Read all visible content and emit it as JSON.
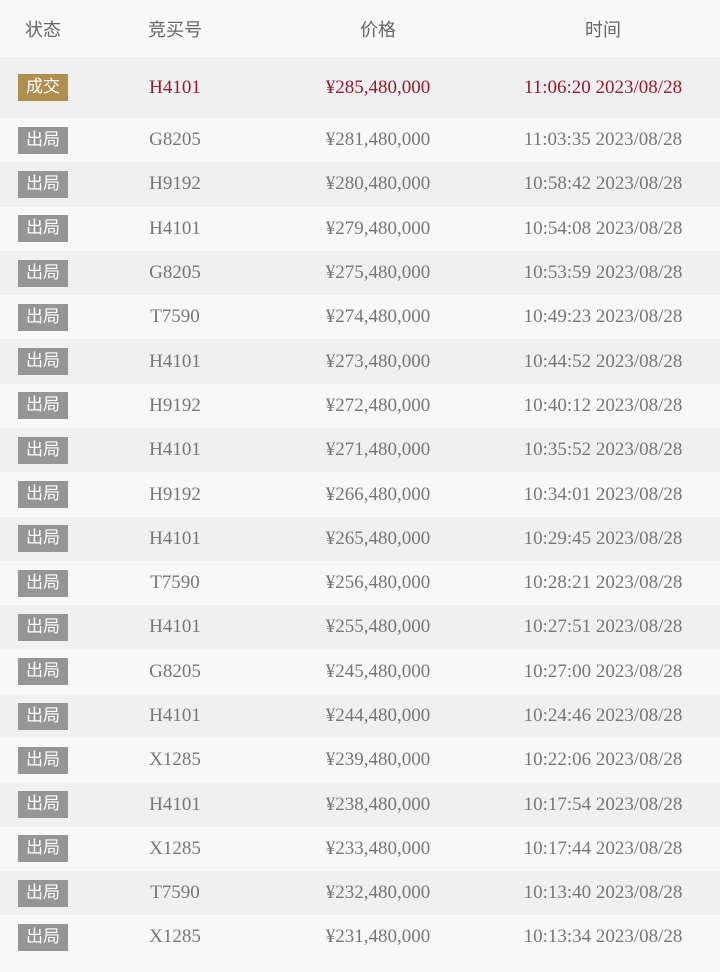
{
  "header": {
    "status": "状态",
    "bid_no": "竞买号",
    "price": "价格",
    "time": "时间"
  },
  "colors": {
    "deal_badge": "#b08f4e",
    "out_badge": "#959595",
    "highlight_text": "#9a1a2c"
  },
  "rows": [
    {
      "status": "成交",
      "bid_no": "H4101",
      "price": "¥285,480,000",
      "time": "11:06:20 2023/08/28"
    },
    {
      "status": "出局",
      "bid_no": "G8205",
      "price": "¥281,480,000",
      "time": "11:03:35 2023/08/28"
    },
    {
      "status": "出局",
      "bid_no": "H9192",
      "price": "¥280,480,000",
      "time": "10:58:42 2023/08/28"
    },
    {
      "status": "出局",
      "bid_no": "H4101",
      "price": "¥279,480,000",
      "time": "10:54:08 2023/08/28"
    },
    {
      "status": "出局",
      "bid_no": "G8205",
      "price": "¥275,480,000",
      "time": "10:53:59 2023/08/28"
    },
    {
      "status": "出局",
      "bid_no": "T7590",
      "price": "¥274,480,000",
      "time": "10:49:23 2023/08/28"
    },
    {
      "status": "出局",
      "bid_no": "H4101",
      "price": "¥273,480,000",
      "time": "10:44:52 2023/08/28"
    },
    {
      "status": "出局",
      "bid_no": "H9192",
      "price": "¥272,480,000",
      "time": "10:40:12 2023/08/28"
    },
    {
      "status": "出局",
      "bid_no": "H4101",
      "price": "¥271,480,000",
      "time": "10:35:52 2023/08/28"
    },
    {
      "status": "出局",
      "bid_no": "H9192",
      "price": "¥266,480,000",
      "time": "10:34:01 2023/08/28"
    },
    {
      "status": "出局",
      "bid_no": "H4101",
      "price": "¥265,480,000",
      "time": "10:29:45 2023/08/28"
    },
    {
      "status": "出局",
      "bid_no": "T7590",
      "price": "¥256,480,000",
      "time": "10:28:21 2023/08/28"
    },
    {
      "status": "出局",
      "bid_no": "H4101",
      "price": "¥255,480,000",
      "time": "10:27:51 2023/08/28"
    },
    {
      "status": "出局",
      "bid_no": "G8205",
      "price": "¥245,480,000",
      "time": "10:27:00 2023/08/28"
    },
    {
      "status": "出局",
      "bid_no": "H4101",
      "price": "¥244,480,000",
      "time": "10:24:46 2023/08/28"
    },
    {
      "status": "出局",
      "bid_no": "X1285",
      "price": "¥239,480,000",
      "time": "10:22:06 2023/08/28"
    },
    {
      "status": "出局",
      "bid_no": "H4101",
      "price": "¥238,480,000",
      "time": "10:17:54 2023/08/28"
    },
    {
      "status": "出局",
      "bid_no": "X1285",
      "price": "¥233,480,000",
      "time": "10:17:44 2023/08/28"
    },
    {
      "status": "出局",
      "bid_no": "T7590",
      "price": "¥232,480,000",
      "time": "10:13:40 2023/08/28"
    },
    {
      "status": "出局",
      "bid_no": "X1285",
      "price": "¥231,480,000",
      "time": "10:13:34 2023/08/28"
    }
  ]
}
